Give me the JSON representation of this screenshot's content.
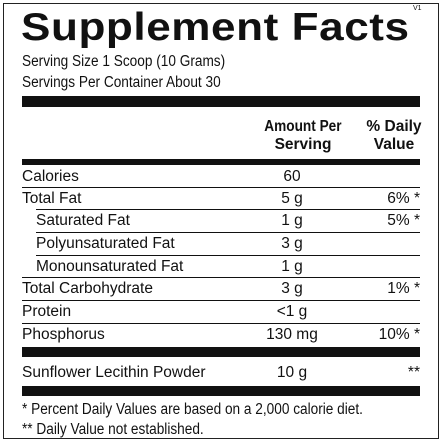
{
  "version_mark": "V1",
  "title": "Supplement Facts",
  "serving_size": "Serving Size  1 Scoop (10 Grams)",
  "servings_per_container": "Servings Per Container  About 30",
  "header": {
    "amount_line1": "Amount Per",
    "amount_line2": "Serving",
    "dv_line1": "% Daily",
    "dv_line2": "Value"
  },
  "rows": [
    {
      "name": "Calories",
      "amount": "60",
      "dv": ""
    },
    {
      "name": "Total Fat",
      "amount": "5 g",
      "dv": "6% *"
    },
    {
      "name": "Saturated Fat",
      "amount": "1 g",
      "dv": "5% *"
    },
    {
      "name": "Polyunsaturated Fat",
      "amount": "3 g",
      "dv": ""
    },
    {
      "name": "Monounsaturated Fat",
      "amount": "1 g",
      "dv": ""
    },
    {
      "name": "Total Carbohydrate",
      "amount": "3 g",
      "dv": "1% *"
    },
    {
      "name": "Protein",
      "amount": "<1 g",
      "dv": ""
    },
    {
      "name": "Phosphorus",
      "amount": "130 mg",
      "dv": "10% *"
    }
  ],
  "other": {
    "name": "Sunflower Lecithin Powder",
    "amount": "10 g",
    "dv": "**"
  },
  "footnote1": "* Percent Daily Values are based on a 2,000 calorie diet.",
  "footnote2": "** Daily Value not established."
}
